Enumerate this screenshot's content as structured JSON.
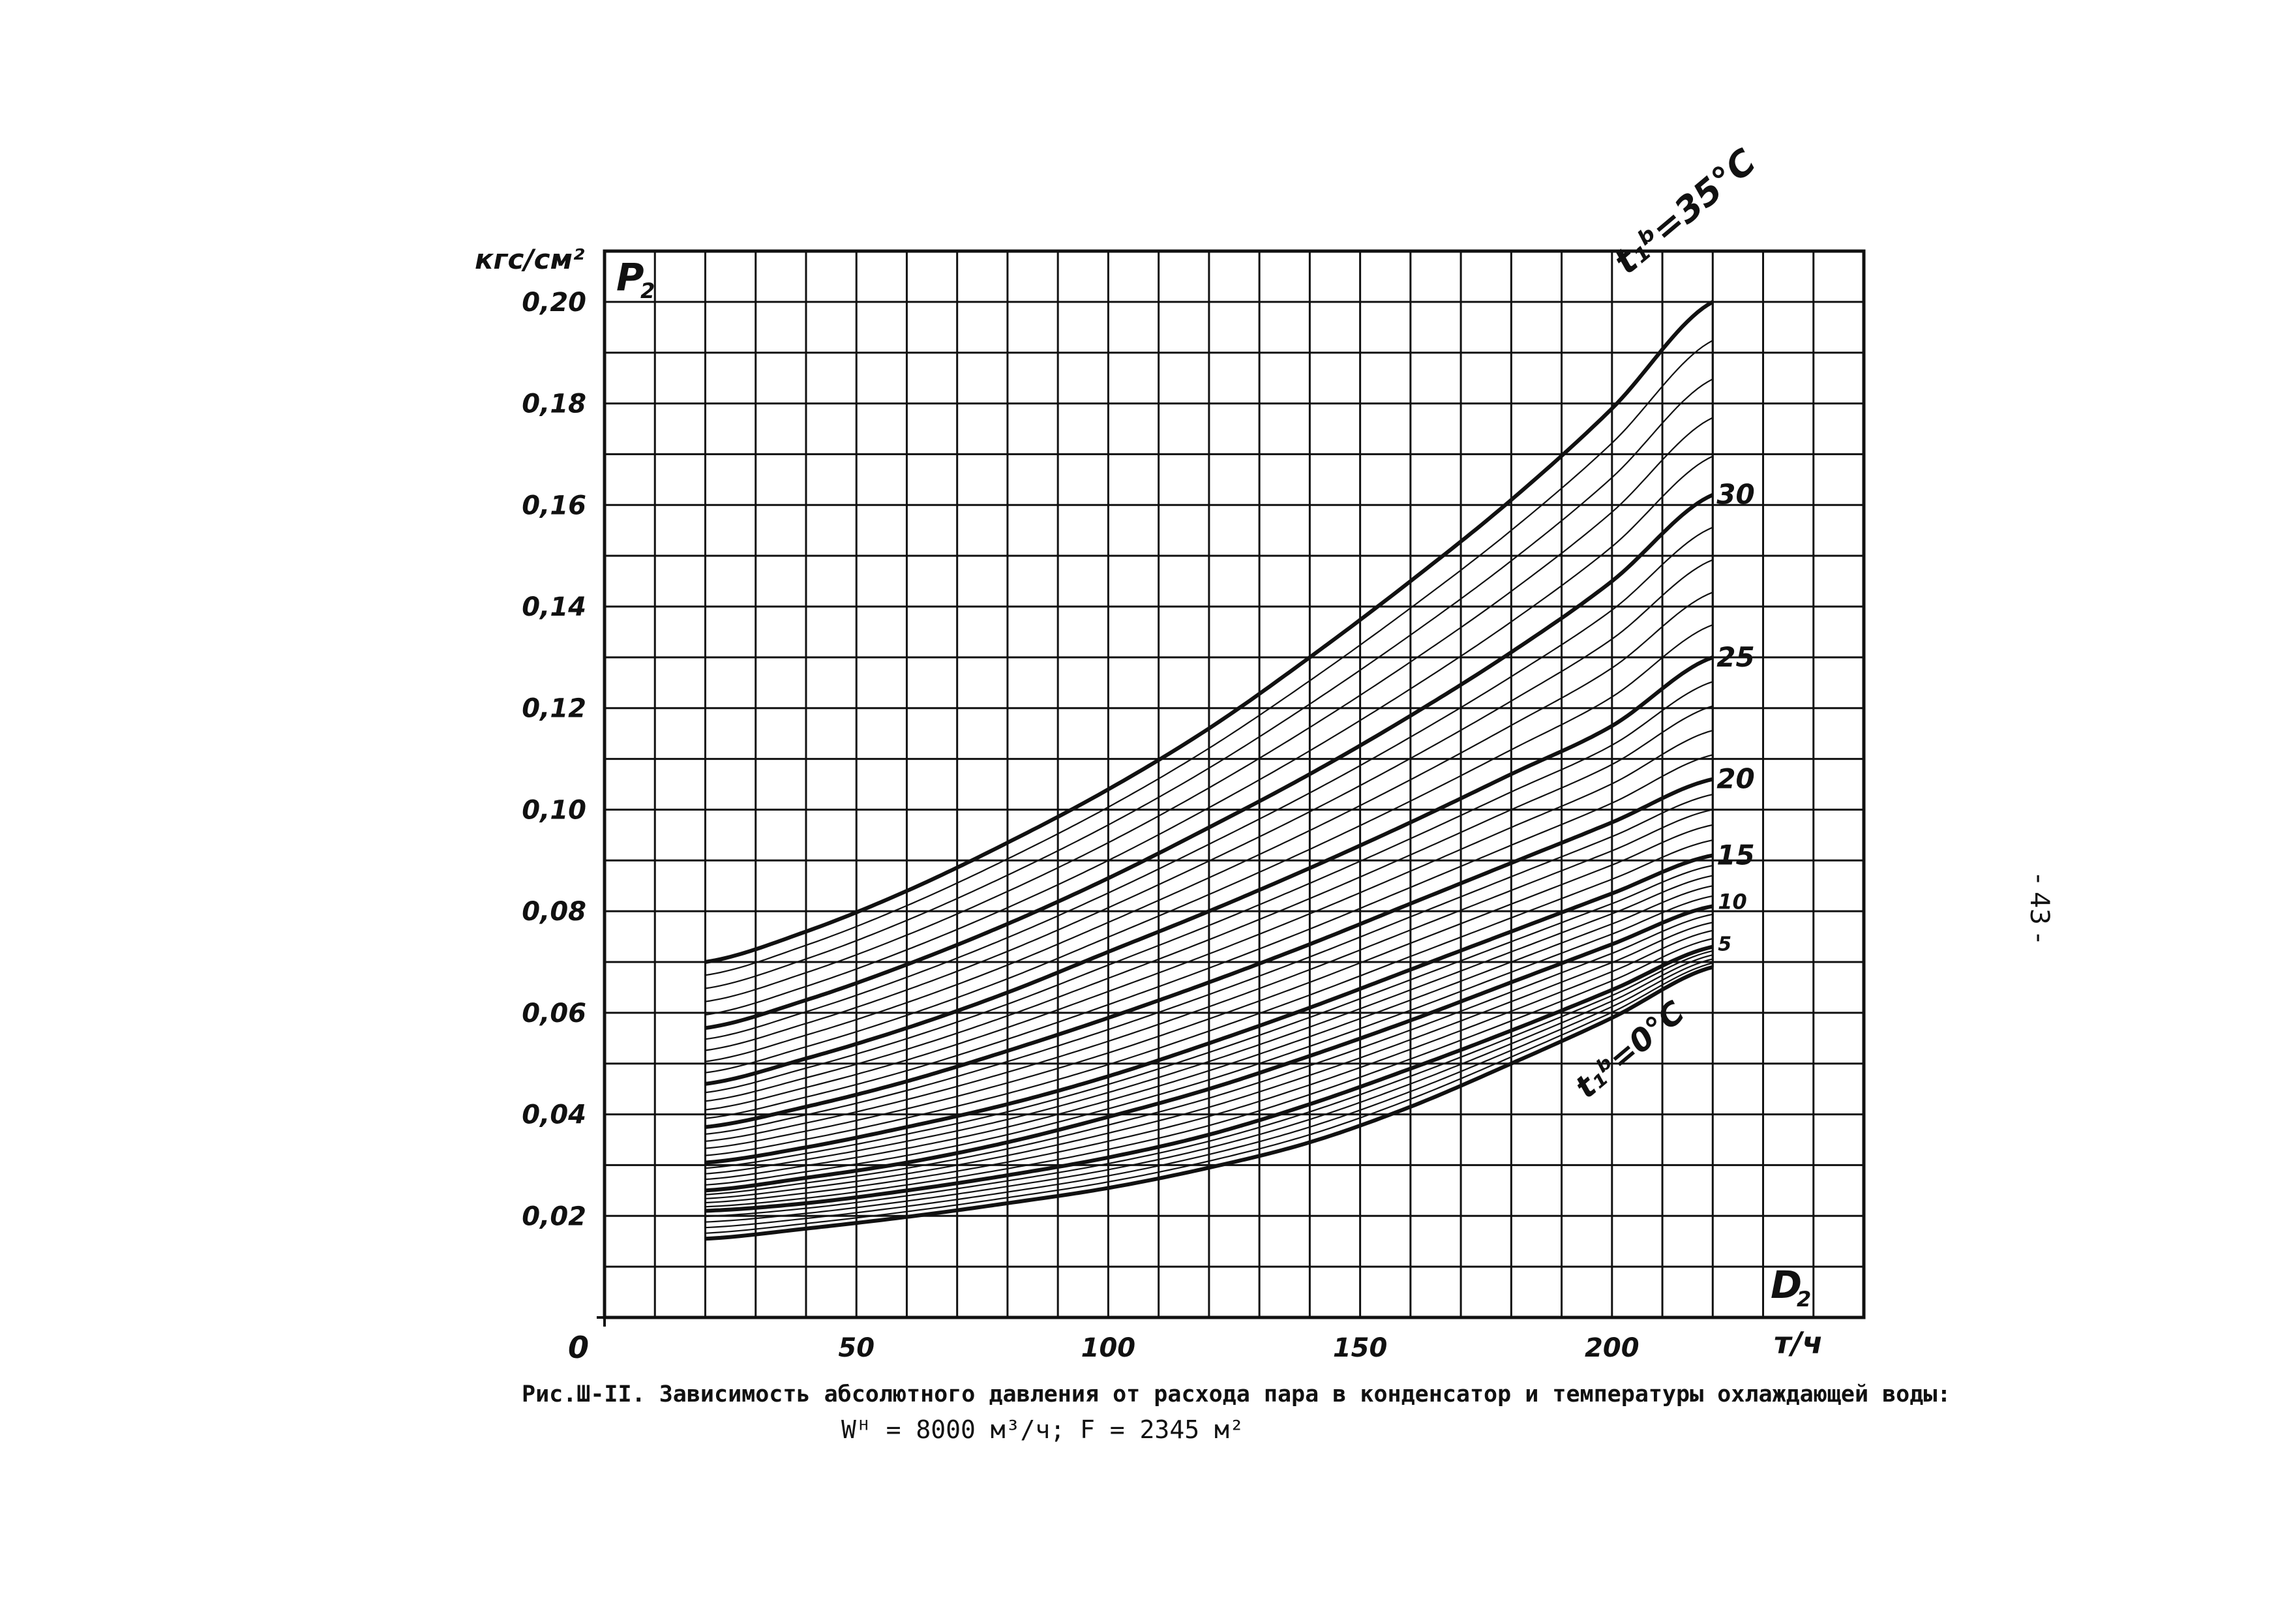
{
  "chart_data": {
    "type": "line",
    "y_unit": "кгс/см²",
    "y_symbol": "P",
    "y_symbol_sub": "2",
    "x_unit": "т/ч",
    "x_symbol": "D",
    "x_symbol_sub": "2",
    "xlim": [
      0,
      250
    ],
    "ylim": [
      0,
      0.21
    ],
    "origin_label": "0",
    "x_ticks": [
      50,
      100,
      150,
      200
    ],
    "x_tick_labels": [
      "50",
      "100",
      "150",
      "200"
    ],
    "y_ticks": [
      0.02,
      0.04,
      0.06,
      0.08,
      0.1,
      0.12,
      0.14,
      0.16,
      0.18,
      0.2
    ],
    "y_tick_labels": [
      "0,02",
      "0,04",
      "0,06",
      "0,08",
      "0,10",
      "0,12",
      "0,14",
      "0,16",
      "0,18",
      "0,20"
    ],
    "grid": true,
    "x": [
      20,
      40,
      60,
      80,
      100,
      120,
      140,
      160,
      180,
      200,
      220
    ],
    "series": [
      {
        "t": 0,
        "values": [
          0.0155,
          0.0175,
          0.0198,
          0.0225,
          0.0255,
          0.0295,
          0.0345,
          0.0415,
          0.05,
          0.059,
          0.069
        ]
      },
      {
        "t": 5,
        "values": [
          0.021,
          0.0225,
          0.025,
          0.028,
          0.0315,
          0.036,
          0.042,
          0.049,
          0.0565,
          0.0645,
          0.073
        ]
      },
      {
        "t": 10,
        "values": [
          0.025,
          0.0275,
          0.0305,
          0.0345,
          0.0395,
          0.045,
          0.0515,
          0.0585,
          0.066,
          0.0735,
          0.081
        ]
      },
      {
        "t": 15,
        "values": [
          0.0305,
          0.0335,
          0.0375,
          0.042,
          0.0475,
          0.054,
          0.061,
          0.0685,
          0.076,
          0.0835,
          0.091
        ]
      },
      {
        "t": 20,
        "values": [
          0.0375,
          0.0415,
          0.0465,
          0.0525,
          0.059,
          0.066,
          0.0735,
          0.0815,
          0.0895,
          0.0975,
          0.106
        ]
      },
      {
        "t": 25,
        "values": [
          0.046,
          0.051,
          0.057,
          0.064,
          0.072,
          0.08,
          0.0885,
          0.0975,
          0.107,
          0.1165,
          0.13
        ]
      },
      {
        "t": 30,
        "values": [
          0.057,
          0.0625,
          0.0695,
          0.0775,
          0.0865,
          0.0965,
          0.107,
          0.1185,
          0.131,
          0.145,
          0.162
        ]
      },
      {
        "t": 35,
        "values": [
          0.07,
          0.076,
          0.084,
          0.0935,
          0.104,
          0.116,
          0.13,
          0.145,
          0.161,
          0.179,
          0.2
        ]
      }
    ],
    "curve_labels": [
      {
        "t": 35,
        "label": "t₁ᵇ=35°C"
      },
      {
        "t": 30,
        "label": "30"
      },
      {
        "t": 25,
        "label": "25"
      },
      {
        "t": 20,
        "label": "20"
      },
      {
        "t": 15,
        "label": "15"
      },
      {
        "t": 10,
        "label": "10"
      },
      {
        "t": 5,
        "label": "5"
      },
      {
        "t": 0,
        "label": "t₁ᵇ=0°C"
      }
    ]
  },
  "caption": {
    "line1": "Рис.Ш-II. Зависимость абсолютного давления от расхода пара в конденсатор и температуры охлаждающей воды:",
    "line2": "Wᴴ = 8000 м³/ч;  F = 2345 м²"
  },
  "page_number": "- 43 -",
  "colors": {
    "ink": "#111111",
    "background": "#ffffff"
  }
}
